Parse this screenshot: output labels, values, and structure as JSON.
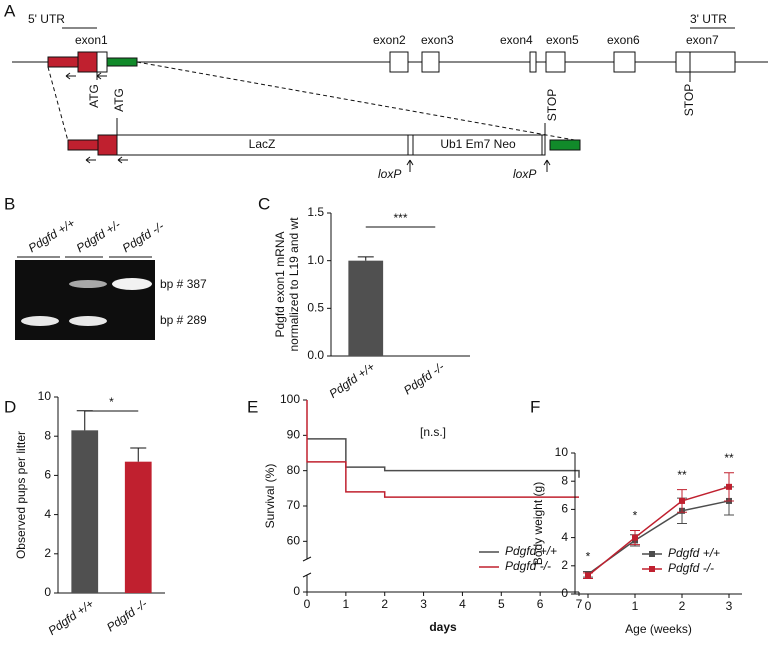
{
  "panel_labels": [
    "A",
    "B",
    "C",
    "D",
    "E",
    "F"
  ],
  "diagram": {
    "utr5": "5' UTR",
    "utr3": "3' UTR",
    "exons": [
      "exon1",
      "exon2",
      "exon3",
      "exon4",
      "exon5",
      "exon6",
      "exon7"
    ],
    "atg": [
      "ATG",
      "ATG"
    ],
    "stop": [
      "STOP",
      "STOP"
    ],
    "cassette": [
      "LacZ",
      "Ub1 Em7 Neo"
    ],
    "loxp": [
      "loxP",
      "loxP"
    ]
  },
  "gel": {
    "lanes": [
      "Pdgfd +/+",
      "Pdgfd +/-",
      "Pdgfd -/-"
    ],
    "bands": [
      "bp # 387",
      "bp # 289"
    ]
  },
  "chart_data": [
    {
      "type": "bar",
      "ylabel": [
        "Pdgfd exon1 mRNA",
        "normalized to L19 and wt"
      ],
      "categories": [
        "Pdgfd +/+",
        "Pdgfd -/-"
      ],
      "values": [
        1.0,
        0.0
      ],
      "errors": [
        0.04,
        0.0
      ],
      "colors": [
        "#505050",
        "#505050"
      ],
      "significance": "***",
      "ylim": [
        0,
        1.5
      ],
      "yticks": [
        {
          "value": 0,
          "label": "0.0"
        },
        0.5,
        {
          "value": 1,
          "label": "1.0"
        },
        1.5
      ]
    },
    {
      "type": "bar",
      "ylabel": [
        "Observed pups per litter"
      ],
      "categories": [
        "Pdgfd +/+",
        "Pdgfd -/-"
      ],
      "values": [
        8.3,
        6.7
      ],
      "errors": [
        1.0,
        0.7
      ],
      "colors": [
        "#505050",
        "#c0202f"
      ],
      "significance": "*",
      "ylim": [
        0,
        10
      ],
      "yticks": [
        0,
        2,
        4,
        6,
        8,
        10
      ]
    },
    {
      "type": "step",
      "xlabel": "days",
      "ylabel": [
        "Survival (%)"
      ],
      "annotation": "[n.s.]",
      "series": [
        {
          "name": "Pdgfd +/+",
          "color": "#4d4d4d",
          "x": [
            0,
            1,
            2,
            7
          ],
          "values": [
            89,
            81,
            80,
            78
          ]
        },
        {
          "name": "Pdgfd -/-",
          "color": "#c0202f",
          "x": [
            0,
            0,
            1,
            2,
            7
          ],
          "values": [
            100,
            82.5,
            74,
            72.5,
            72.5
          ]
        }
      ],
      "xlim": [
        0,
        7
      ],
      "xticks": [
        0,
        1,
        2,
        3,
        4,
        5,
        6,
        7
      ],
      "ylim": [
        0,
        100
      ],
      "y_break": 55,
      "yticks": [
        0,
        60,
        70,
        80,
        90,
        100
      ],
      "legend": "lower right"
    },
    {
      "type": "line",
      "xlabel": "Age (weeks)",
      "ylabel": [
        "Body weight (g)"
      ],
      "annotations": [
        "*",
        "*",
        "**",
        "**"
      ],
      "series": [
        {
          "name": "Pdgfd +/+",
          "color": "#4d4d4d",
          "x": [
            0,
            1,
            2,
            3
          ],
          "values": [
            1.4,
            3.8,
            5.9,
            6.6
          ],
          "errors": [
            0.2,
            0.4,
            0.9,
            1.0
          ]
        },
        {
          "name": "Pdgfd -/-",
          "color": "#c0202f",
          "x": [
            0,
            1,
            2,
            3
          ],
          "values": [
            1.3,
            4.0,
            6.6,
            7.6
          ],
          "errors": [
            0.2,
            0.5,
            0.8,
            1.0
          ]
        }
      ],
      "xlim": [
        0,
        3
      ],
      "xticks": [
        0,
        1,
        2,
        3
      ],
      "ylim": [
        0,
        10
      ],
      "yticks": [
        0,
        2,
        4,
        6,
        8,
        10
      ],
      "legend": "lower right"
    }
  ]
}
